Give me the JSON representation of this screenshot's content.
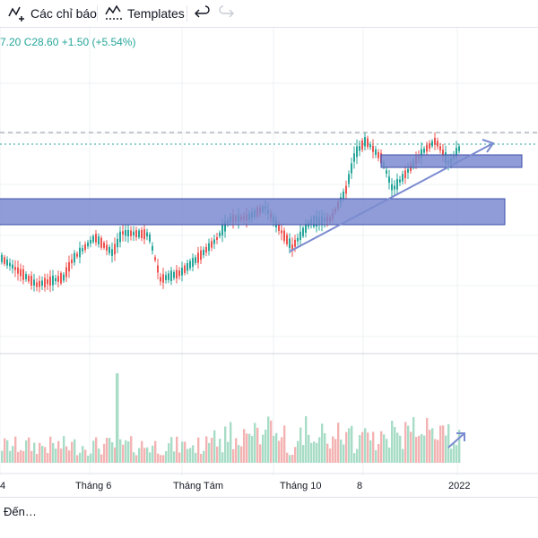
{
  "toolbar": {
    "indicators_label": "Các chỉ báo",
    "templates_label": "Templates",
    "indicators_icon": "indicators-plus-icon",
    "templates_icon": "templates-icon",
    "undo_icon": "undo-icon",
    "redo_icon": "redo-icon"
  },
  "ohlc": {
    "high_partial": "7.20",
    "close": "C28.60",
    "change": "+1.50 (+5.54%)"
  },
  "footer": {
    "text": "Đến…"
  },
  "colors": {
    "up": "#26a69a",
    "down": "#ef5350",
    "volume_up": "#a7dcc6",
    "volume_down": "#f4b3b3",
    "zone_fill": "#7b8bd0",
    "zone_stroke": "#3b4ea8",
    "trendline": "#7b8bd0"
  },
  "chart_data": {
    "type": "candlestick",
    "x_tick_labels": [
      "4",
      "Tháng 6",
      "Tháng Tám",
      "Tháng 10",
      "8",
      "2022"
    ],
    "annotations": [
      "support-resistance-zone",
      "support-resistance-zone",
      "ascending-trendline-arrow",
      "volume-arrow"
    ]
  }
}
